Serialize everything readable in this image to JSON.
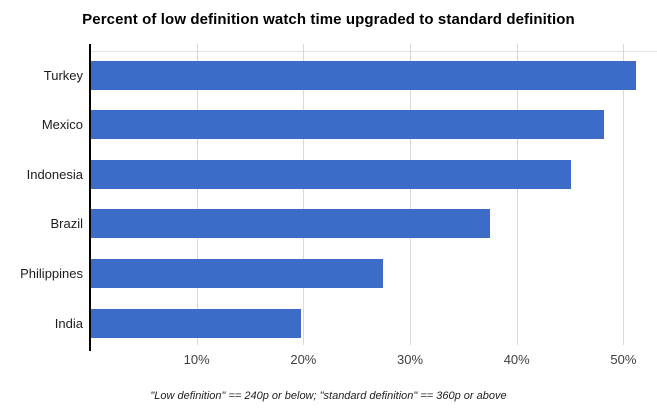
{
  "title": "Percent of low definition watch time upgraded to standard definition",
  "footnote": "\"Low definition\" == 240p or below; \"standard definition\" == 360p or above",
  "chart_data": {
    "type": "bar",
    "orientation": "horizontal",
    "title": "Percent of low definition watch time upgraded to standard definition",
    "categories": [
      "Turkey",
      "Mexico",
      "Indonesia",
      "Brazil",
      "Philippines",
      "India"
    ],
    "values": [
      51.1,
      48.1,
      45.0,
      37.4,
      27.4,
      19.7
    ],
    "xlabel": "",
    "ylabel": "",
    "x_ticks": [
      "10%",
      "20%",
      "30%",
      "40%",
      "50%"
    ],
    "x_tick_values": [
      10,
      20,
      30,
      40,
      50
    ],
    "xlim": [
      0,
      53.1
    ],
    "grid": true,
    "legend": "none",
    "bar_color": "#3c6cc8",
    "gridline_color": "#d9d9d9",
    "axis_color": "#000000",
    "footnote": "\"Low definition\" == 240p or below; \"standard definition\" == 360p or above"
  }
}
